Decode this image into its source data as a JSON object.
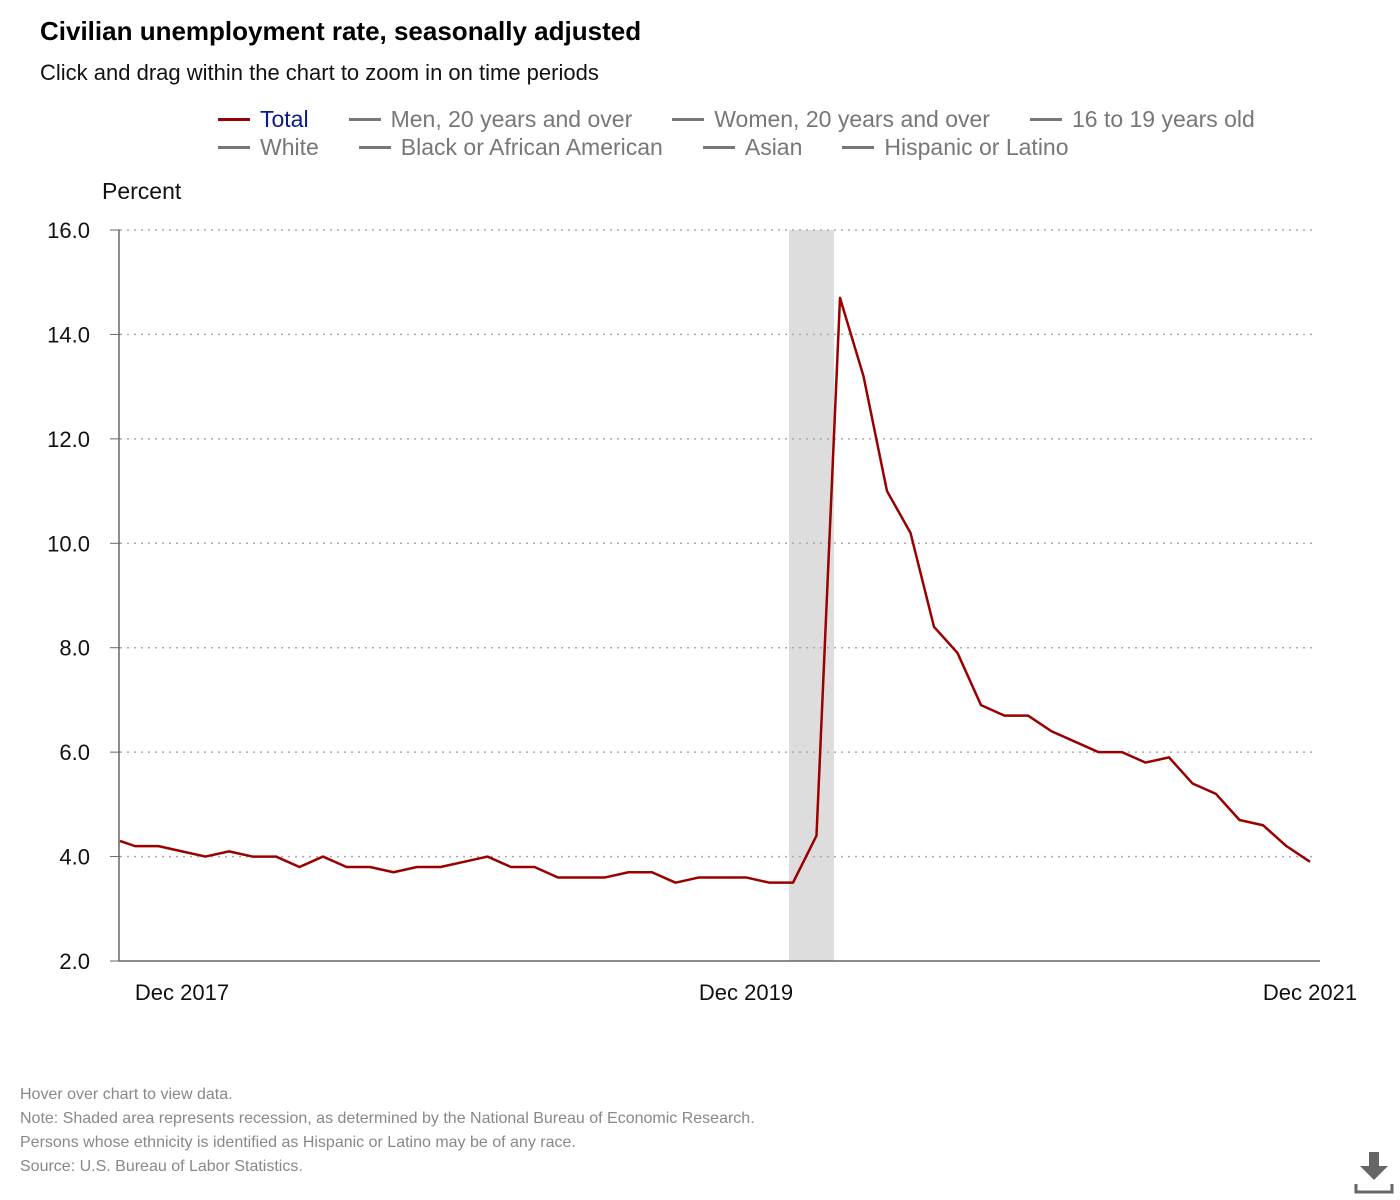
{
  "header": {
    "title": "Civilian unemployment rate, seasonally adjusted",
    "subtitle": "Click and drag within the chart to zoom in on time periods"
  },
  "legend": [
    [
      {
        "label": "Total",
        "active": true
      },
      {
        "label": "Men, 20 years and over"
      },
      {
        "label": "Women, 20 years and over"
      },
      {
        "label": "16 to 19 years old"
      }
    ],
    [
      {
        "label": "White"
      },
      {
        "label": "Black or African American"
      },
      {
        "label": "Asian"
      },
      {
        "label": "Hispanic or Latino"
      }
    ]
  ],
  "chart_data": {
    "type": "line",
    "title": "Civilian unemployment rate, seasonally adjusted",
    "ylabel": "Percent",
    "ylim": [
      2,
      16
    ],
    "yticks": [
      "2.0",
      "4.0",
      "6.0",
      "8.0",
      "10.0",
      "12.0",
      "14.0",
      "16.0"
    ],
    "xticks": [
      {
        "label": "Dec 2017",
        "index": 2
      },
      {
        "label": "Dec 2019",
        "index": 26
      },
      {
        "label": "Dec 2021",
        "index": 50
      }
    ],
    "x_start": "Oct 2017",
    "x_domain": [
      -0.64,
      51
    ],
    "recession": [
      28,
      30
    ],
    "grid": true,
    "series": [
      {
        "name": "Total",
        "color": "#990000",
        "start_index": -0.64,
        "first_value": 4.3,
        "values": [
          4.2,
          4.2,
          4.1,
          4.0,
          4.1,
          4.0,
          4.0,
          3.8,
          4.0,
          3.8,
          3.8,
          3.7,
          3.8,
          3.8,
          3.9,
          4.0,
          3.8,
          3.8,
          3.6,
          3.6,
          3.6,
          3.7,
          3.7,
          3.5,
          3.6,
          3.6,
          3.6,
          3.5,
          3.5,
          4.4,
          14.7,
          13.2,
          11.0,
          10.2,
          8.4,
          7.9,
          6.9,
          6.7,
          6.7,
          6.4,
          6.2,
          6.0,
          6.0,
          5.8,
          5.9,
          5.4,
          5.2,
          4.7,
          4.6,
          4.2,
          3.9
        ]
      }
    ]
  },
  "notes": [
    "Hover over chart to view data.",
    "Note: Shaded area represents recession, as determined by the National Bureau of Economic Research.",
    "Persons whose ethnicity is identified as Hispanic or Latino may be of any race.",
    "Source: U.S. Bureau of Labor Statistics."
  ]
}
